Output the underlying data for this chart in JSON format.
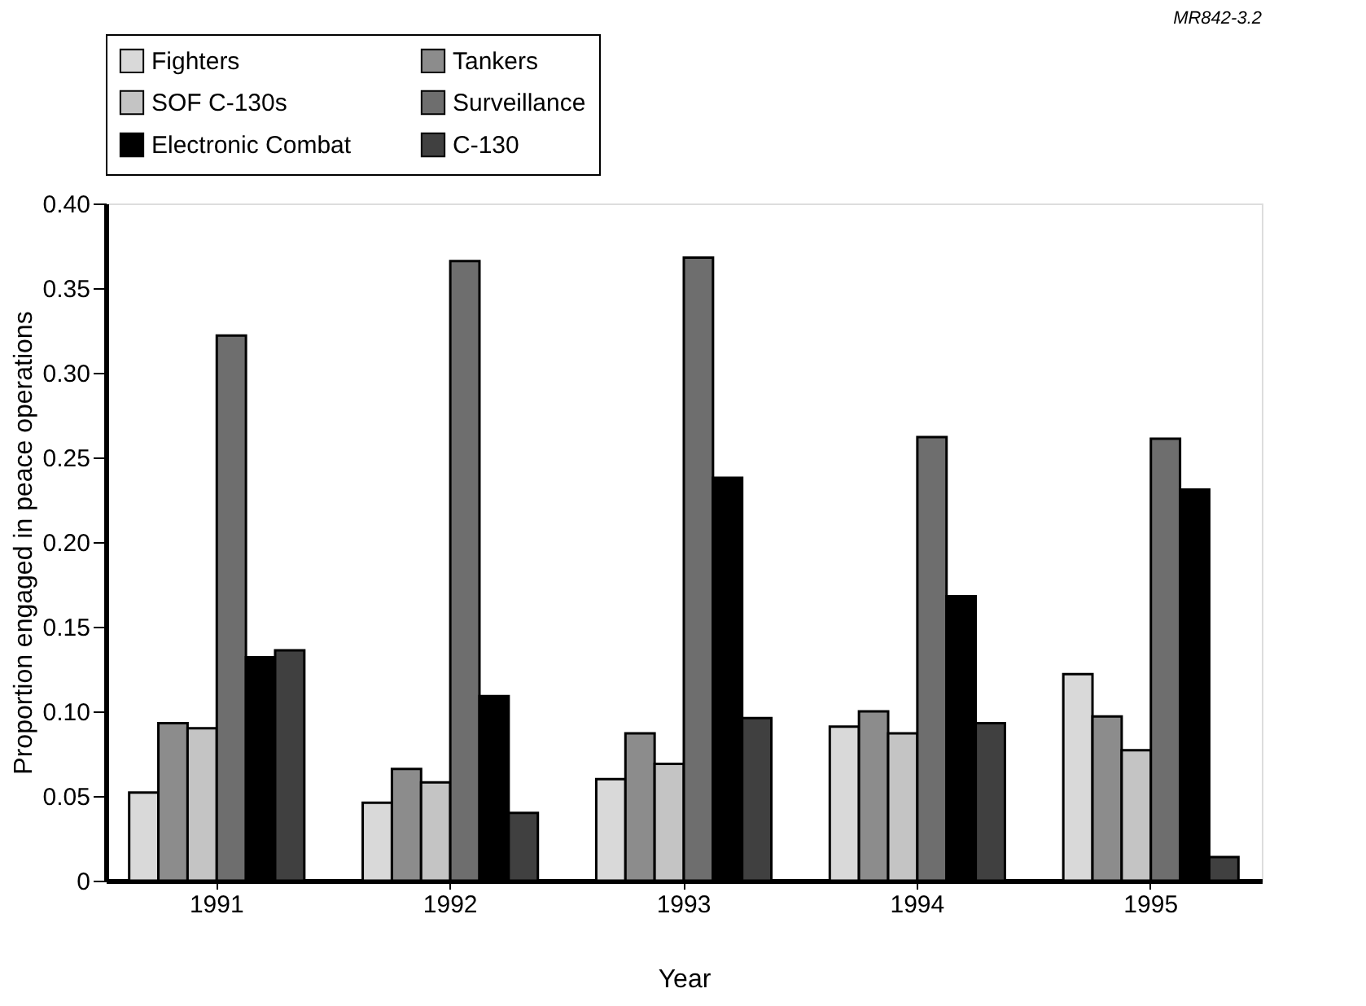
{
  "chart_data": {
    "type": "bar",
    "xlabel": "Year",
    "ylabel": "Proportion engaged in peace operations",
    "categories": [
      "1991",
      "1992",
      "1993",
      "1994",
      "1995"
    ],
    "series": [
      {
        "name": "Fighters",
        "color": "#d9d9d9",
        "values": [
          0.052,
          0.046,
          0.06,
          0.091,
          0.122
        ]
      },
      {
        "name": "Tankers",
        "color": "#8c8c8c",
        "values": [
          0.093,
          0.066,
          0.087,
          0.1,
          0.097
        ]
      },
      {
        "name": "SOF C-130s",
        "color": "#c4c4c4",
        "values": [
          0.09,
          0.058,
          0.069,
          0.087,
          0.077
        ]
      },
      {
        "name": "Surveillance",
        "color": "#6e6e6e",
        "values": [
          0.322,
          0.366,
          0.368,
          0.262,
          0.261
        ]
      },
      {
        "name": "Electronic Combat",
        "color": "#000000",
        "values": [
          0.132,
          0.109,
          0.238,
          0.168,
          0.231
        ]
      },
      {
        "name": "C-130",
        "color": "#404040",
        "values": [
          0.136,
          0.04,
          0.096,
          0.093,
          0.014
        ]
      }
    ],
    "ylim": [
      0,
      0.4
    ],
    "yticks": [
      0,
      {
        "value": 0.05,
        "label": "0.05"
      },
      {
        "value": 0.1,
        "label": "0.10"
      },
      {
        "value": 0.15,
        "label": "0.15"
      },
      {
        "value": 0.2,
        "label": "0.20"
      },
      {
        "value": 0.25,
        "label": "0.25"
      },
      {
        "value": 0.3,
        "label": "0.30"
      },
      {
        "value": 0.35,
        "label": "0.35"
      },
      {
        "value": 0.4,
        "label": "0.40"
      }
    ],
    "legend": "top",
    "grid": false,
    "annotations": [
      "MR842-3.2"
    ]
  }
}
